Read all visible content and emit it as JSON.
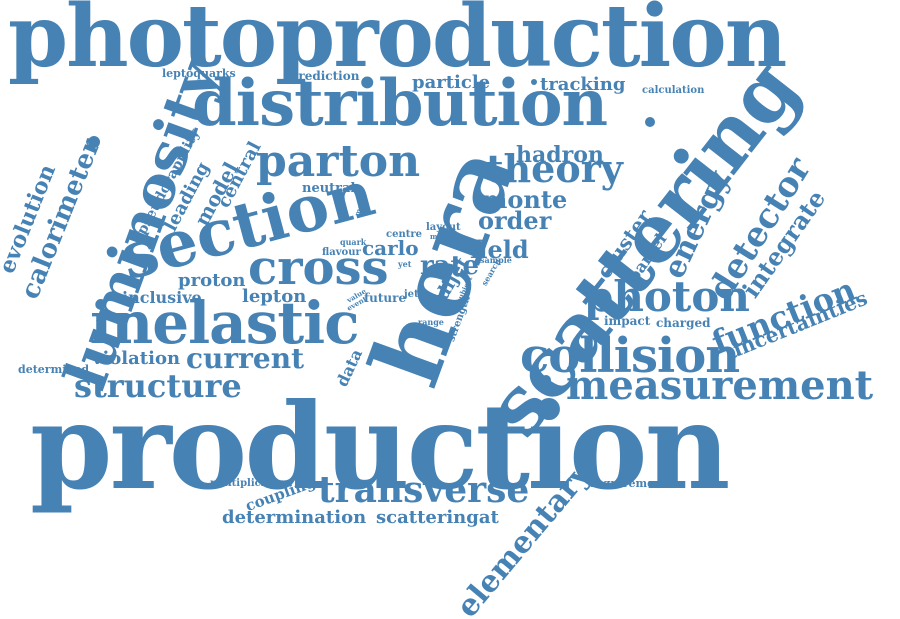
{
  "colors": {
    "word": "#4682b4",
    "background": "#ffffff"
  },
  "words": [
    "photoproduction",
    "distribution",
    "scattering",
    "hera",
    "luminosity",
    "section",
    "parton",
    "theory",
    "hadron",
    "monte",
    "order",
    "field",
    "energy",
    "detector",
    "integrate",
    "cluster",
    "barrel",
    "calorimeter",
    "evolution",
    "pseudorapidity",
    "leading",
    "model",
    "central",
    "neutral",
    "flavour",
    "quark",
    "carlo",
    "centre",
    "layout",
    "muon",
    "cross",
    "rate",
    "sample",
    "search",
    "photon",
    "function",
    "uncertainties",
    "impact",
    "charged",
    "proton",
    "lepton",
    "inclusive",
    "inelastic",
    "collision",
    "measurement",
    "current",
    "violation",
    "structure",
    "determined",
    "data",
    "value",
    "event",
    "future",
    "jet",
    "desy",
    "dijet",
    "range",
    "subject",
    "strength",
    "production",
    "multiplicity",
    "coupling",
    "transverse",
    "requirement",
    "determination",
    "scatteringat",
    "elementary",
    "leptoquarks",
    "prediction",
    "particle",
    "tracking",
    "calculation",
    "mass",
    "yet"
  ]
}
